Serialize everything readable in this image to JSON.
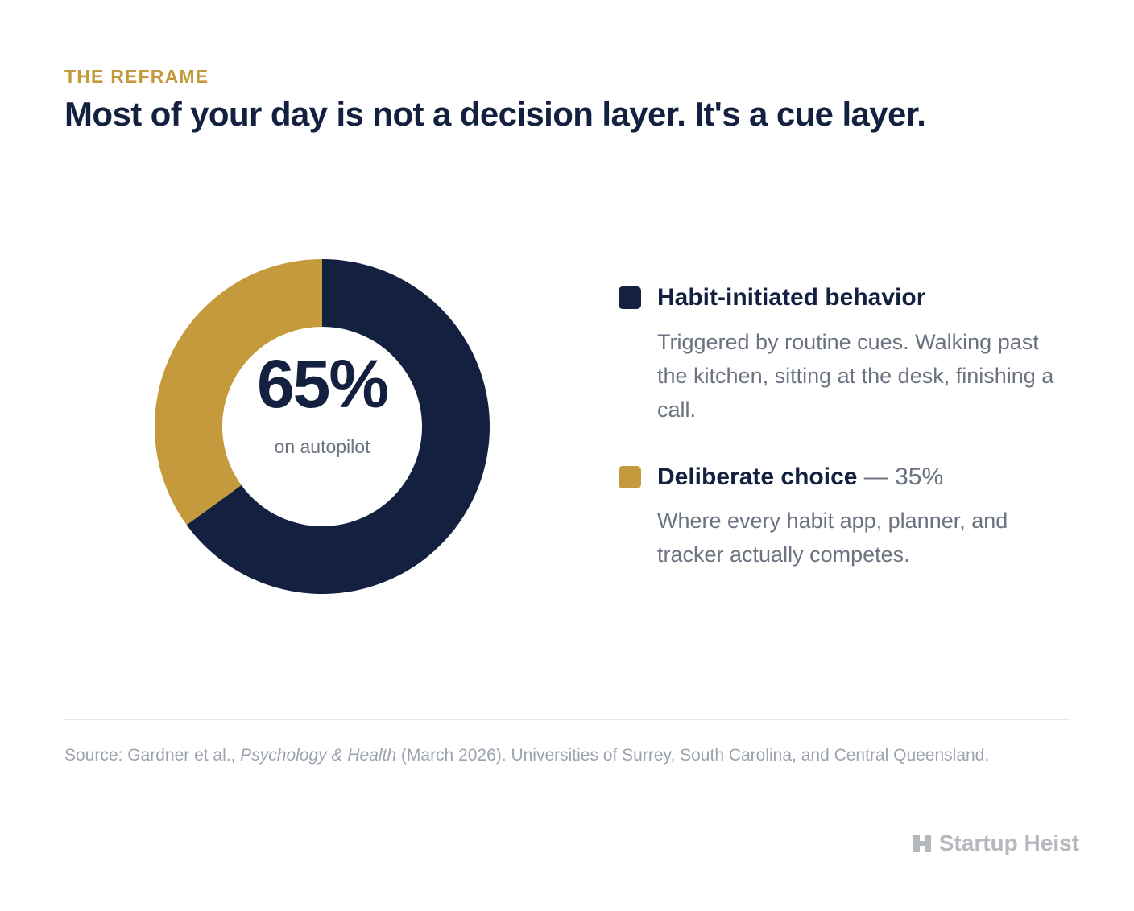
{
  "header": {
    "eyebrow": "THE REFRAME",
    "headline": "Most of your day is not a decision layer. It's a cue layer."
  },
  "donut": {
    "center_value": "65%",
    "center_caption": "on autopilot"
  },
  "legend": [
    {
      "title": "Habit-initiated behavior",
      "suffix": "",
      "description": "Triggered by routine cues. Walking past the kitchen, sitting at the desk, finishing a call.",
      "color": "#13203f"
    },
    {
      "title": "Deliberate choice",
      "suffix": " — 35%",
      "description": "Where every habit app, planner, and tracker actually competes.",
      "color": "#c49a3c"
    }
  ],
  "footer": {
    "source_prefix": "Source: Gardner et al., ",
    "source_title": "Psychology & Health",
    "source_suffix": " (March 2026). Universities of Surrey, South Carolina, and Central Queensland.",
    "brand": "Startup Heist",
    "brand_icon": "building-icon"
  },
  "chart_data": {
    "type": "pie",
    "categories": [
      "Habit-initiated behavior",
      "Deliberate choice"
    ],
    "values": [
      65,
      35
    ],
    "colors": [
      "#13203f",
      "#c49a3c"
    ],
    "title": "Most of your day is not a decision layer. It's a cue layer.",
    "center_label": "65%",
    "center_sublabel": "on autopilot"
  }
}
